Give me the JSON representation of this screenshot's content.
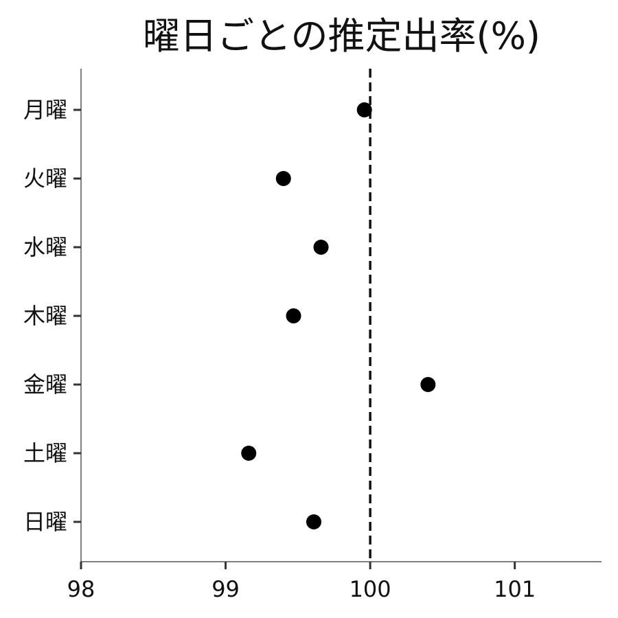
{
  "chart_data": {
    "type": "scatter",
    "title": "曜日ごとの推定出率(%)",
    "categories": [
      "月曜",
      "火曜",
      "水曜",
      "木曜",
      "金曜",
      "土曜",
      "日曜"
    ],
    "values": [
      99.96,
      99.4,
      99.66,
      99.47,
      100.4,
      99.16,
      99.61
    ],
    "xlim": [
      98,
      101.6
    ],
    "xticks": [
      98,
      99,
      100,
      101
    ],
    "reference_line": {
      "x": 100,
      "style": "dashed"
    },
    "xlabel": "",
    "ylabel": "",
    "grid": false,
    "legend": false,
    "marker_color": "#000000",
    "axis_color": "#555555"
  }
}
